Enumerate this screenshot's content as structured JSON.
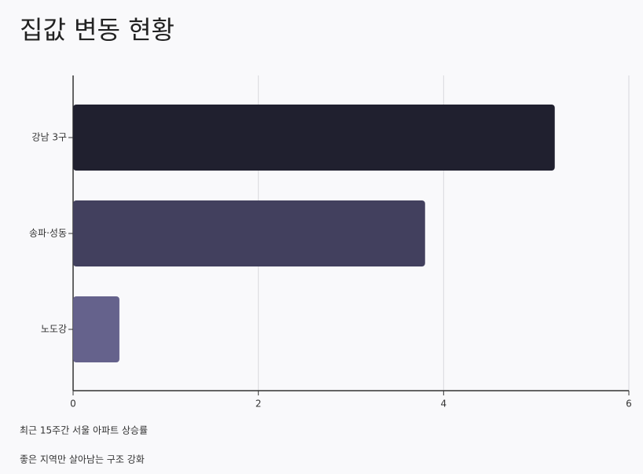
{
  "chart_data": {
    "type": "bar",
    "orientation": "horizontal",
    "title": "집값 변동 현황",
    "categories": [
      "강남 3구",
      "송파·성동",
      "노도강"
    ],
    "values": [
      5.2,
      3.8,
      0.5
    ],
    "colors": [
      "#20202f",
      "#42405e",
      "#65628c"
    ],
    "xlim": [
      0,
      6
    ],
    "xticks": [
      0,
      2,
      4,
      6
    ],
    "grid": true,
    "notes": [
      "최근 15주간 서울 아파트 상승률",
      "좋은 지역만 살아남는 구조 강화"
    ]
  }
}
